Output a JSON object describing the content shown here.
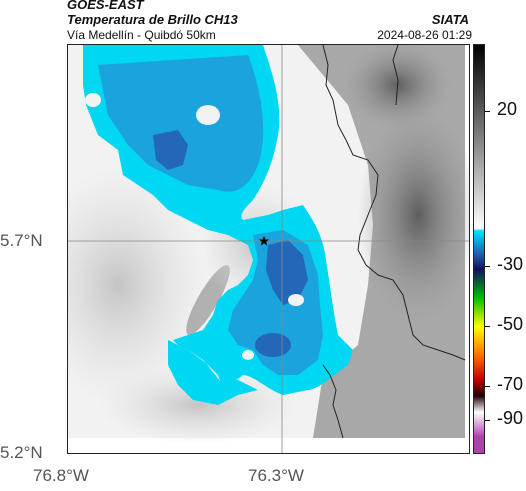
{
  "header": {
    "satellite": "GOES-EAST",
    "product": "Temperatura de Brillo CH13",
    "route": "Vía Medellín - Quibdó 50km",
    "organization": "SIATA",
    "timestamp": "2024-08-26 01:29"
  },
  "axes": {
    "lat_ticks": [
      "5.7°N",
      "5.2°N"
    ],
    "lon_ticks": [
      "76.8°W",
      "76.3°W"
    ]
  },
  "colorbar": {
    "labels": [
      "20",
      "-30",
      "-50",
      "-70",
      "-90"
    ],
    "colors": {
      "warm_top": "#000000",
      "warm_bottom": "#ffffff",
      "cyan": "#00e5ff",
      "blue": "#1f4fa0",
      "navy": "#101060",
      "green": "#00c000",
      "yellow": "#ffff00",
      "orange": "#ff7000",
      "red": "#c00000",
      "dark": "#200000",
      "magenta": "#b040b0"
    }
  },
  "map": {
    "marker": "star-marker",
    "cloud_colors": {
      "light": "#00d7f2",
      "mid": "#1aa3dd",
      "dark": "#2368b8"
    }
  }
}
